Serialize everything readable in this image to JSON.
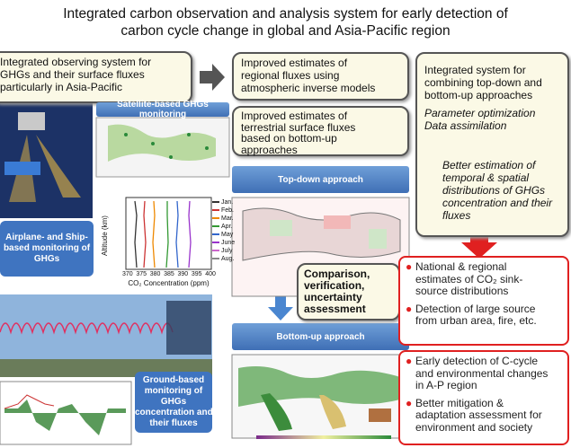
{
  "title": [
    "Integrated carbon observation and analysis system for early detection of",
    "carbon cycle change in global and Asia-Pacific region"
  ],
  "observing_box": [
    "Integrated observing system for",
    "GHGs and their surface fluxes",
    "particularly in Asia-Pacific"
  ],
  "satellite_label": "Satellite-based GHGs  monitoring",
  "airplane_label": [
    "Airplane- and Ship-",
    "based monitoring of",
    "GHGs"
  ],
  "ground_label": [
    "Ground-based",
    "monitoring of",
    "GHGs",
    "concentration and",
    "their fluxes"
  ],
  "profile_chart": {
    "y_label": "Altitude (km)",
    "x_label": "CO₂ Concentration (ppm)",
    "x_ticks": [
      "370",
      "375",
      "380",
      "385",
      "390",
      "395",
      "400"
    ],
    "legend": [
      "Jan.",
      "Feb.",
      "Mar.",
      "Apr.",
      "May",
      "June",
      "July",
      "Aug."
    ]
  },
  "regional_box": [
    "Improved estimates of",
    "regional fluxes using",
    "atmospheric inverse models"
  ],
  "terrestrial_box": [
    "Improved estimates of",
    "terrestrial surface fluxes",
    "based on bottom-up",
    "approaches"
  ],
  "integrated_box": {
    "heading": [
      "Integrated system for",
      "combining top-down and",
      "bottom-up approaches"
    ],
    "methods": [
      "Parameter optimization",
      "Data assimilation"
    ],
    "result": [
      "Better estimation of",
      "temporal & spatial",
      "distributions of  GHGs",
      "concentration and  their",
      "fluxes"
    ]
  },
  "top_down": "Top-down approach",
  "bottom_up": "Bottom-up approach",
  "comparison_box": [
    "Comparison,",
    "verification,",
    "uncertainty",
    "assessment"
  ],
  "outcomes_1": [
    [
      "National & regional",
      "estimates of CO₂ sink-",
      "source distributions"
    ],
    [
      "Detection of large source",
      "from urban area, fire, etc."
    ]
  ],
  "outcomes_2": [
    [
      "Early detection of C-cycle",
      "and environmental changes",
      "in A-P region"
    ],
    [
      "Better mitigation &",
      "adaptation assessment for",
      "environment and society"
    ]
  ]
}
